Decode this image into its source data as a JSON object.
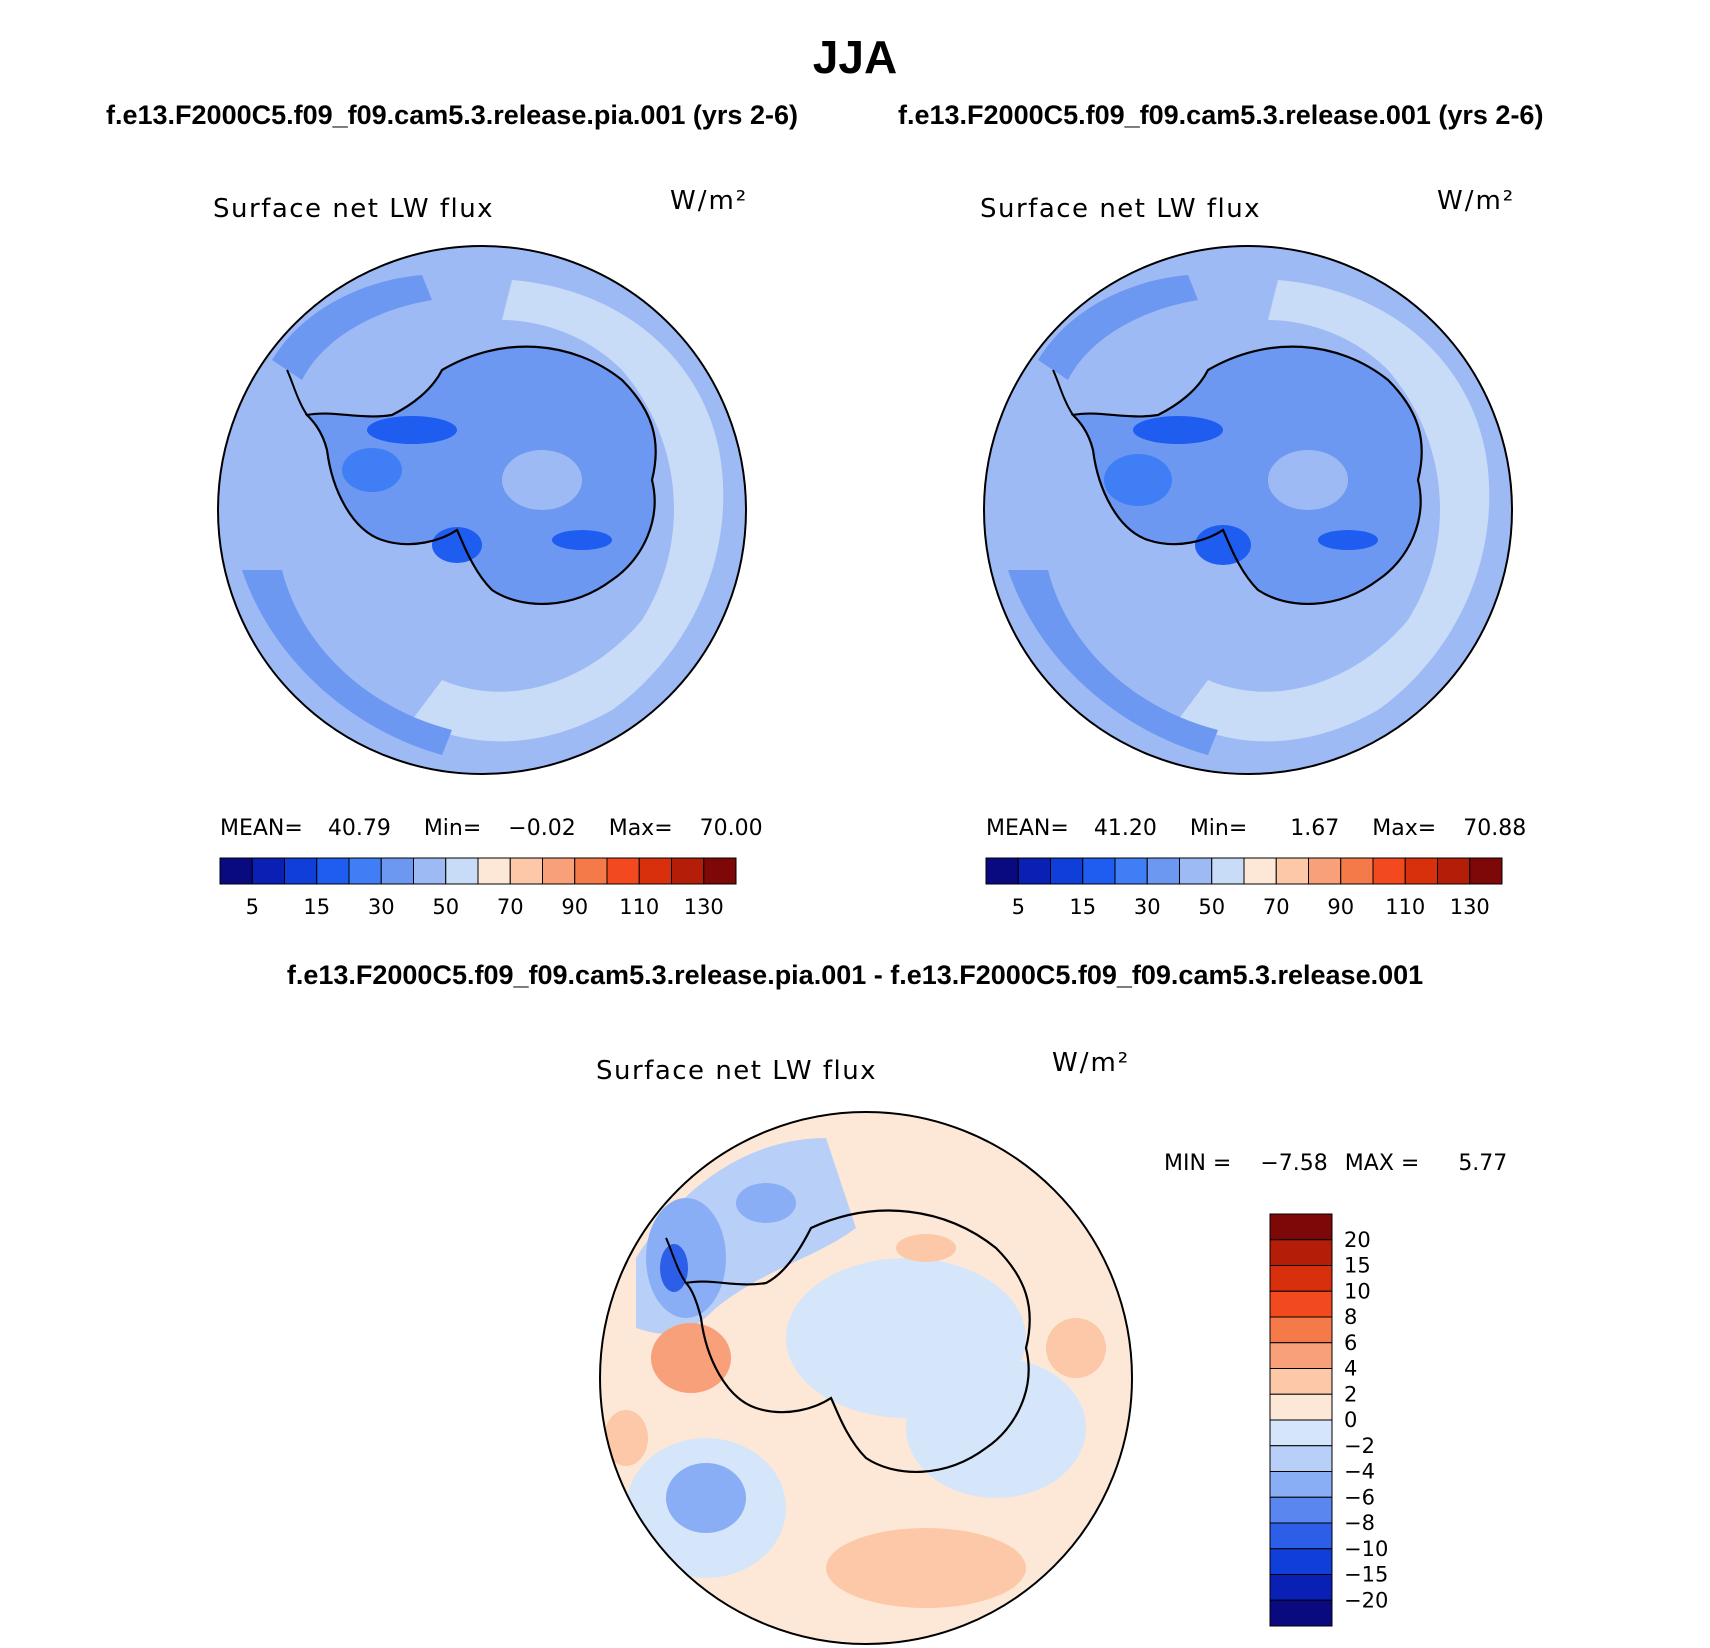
{
  "title": "JJA",
  "panels": {
    "left": {
      "case": "f.e13.F2000C5.f09_f09.cam5.3.release.pia.001 (yrs 2-6)",
      "variable": "Surface net LW flux",
      "units": "W/m²",
      "mean_label": "MEAN=",
      "mean": "40.79",
      "min_label": "Min=",
      "min": "−0.02",
      "max_label": "Max=",
      "max": "70.00"
    },
    "right": {
      "case": "f.e13.F2000C5.f09_f09.cam5.3.release.001 (yrs 2-6)",
      "variable": "Surface net LW flux",
      "units": "W/m²",
      "mean_label": "MEAN=",
      "mean": "41.20",
      "min_label": "Min=",
      "min": "1.67",
      "max_label": "Max=",
      "max": "70.88"
    },
    "diff": {
      "case": "f.e13.F2000C5.f09_f09.cam5.3.release.pia.001 - f.e13.F2000C5.f09_f09.cam5.3.release.001",
      "variable": "Surface net LW flux",
      "units": "W/m²",
      "min_label": "MIN =",
      "min": "−7.58",
      "max_label": "MAX =",
      "max": "5.77"
    }
  },
  "chart_data": [
    {
      "type": "heatmap",
      "projection": "south polar stereographic",
      "title": "Surface net LW flux",
      "units": "W/m²",
      "stats": {
        "mean": 40.79,
        "min": -0.02,
        "max": 70.0
      },
      "colorbar": {
        "orientation": "horizontal",
        "tick_labels": [
          "5",
          "15",
          "30",
          "50",
          "70",
          "90",
          "110",
          "130"
        ],
        "colors": [
          "#0a0a80",
          "#0a1fb4",
          "#0f3fd8",
          "#1f5cf0",
          "#3f7ef5",
          "#6c98f2",
          "#9dbaf5",
          "#c8dcf8",
          "#fde8d8",
          "#fcc8a8",
          "#f8a07a",
          "#f57a4a",
          "#f24a1e",
          "#d8300c",
          "#b41e08",
          "#7e0808"
        ]
      }
    },
    {
      "type": "heatmap",
      "projection": "south polar stereographic",
      "title": "Surface net LW flux",
      "units": "W/m²",
      "stats": {
        "mean": 41.2,
        "min": 1.67,
        "max": 70.88
      },
      "colorbar": {
        "orientation": "horizontal",
        "tick_labels": [
          "5",
          "15",
          "30",
          "50",
          "70",
          "90",
          "110",
          "130"
        ],
        "colors": [
          "#0a0a80",
          "#0a1fb4",
          "#0f3fd8",
          "#1f5cf0",
          "#3f7ef5",
          "#6c98f2",
          "#9dbaf5",
          "#c8dcf8",
          "#fde8d8",
          "#fcc8a8",
          "#f8a07a",
          "#f57a4a",
          "#f24a1e",
          "#d8300c",
          "#b41e08",
          "#7e0808"
        ]
      }
    },
    {
      "type": "heatmap",
      "projection": "south polar stereographic",
      "title": "Surface net LW flux",
      "units": "W/m²",
      "stats": {
        "min": -7.58,
        "max": 5.77
      },
      "colorbar": {
        "orientation": "vertical",
        "tick_labels": [
          "20",
          "15",
          "10",
          "8",
          "6",
          "4",
          "2",
          "0",
          "−2",
          "−4",
          "−6",
          "−8",
          "−10",
          "−15",
          "−20"
        ],
        "colors": [
          "#7e0808",
          "#b41e08",
          "#d8300c",
          "#f24a1e",
          "#f57a4a",
          "#f8a07a",
          "#fcc8a8",
          "#fde8d8",
          "#d6e6fa",
          "#b8d0f8",
          "#8aaef5",
          "#5a86f0",
          "#2c5ee8",
          "#0f3fd8",
          "#0a1fb4",
          "#0a0a80"
        ]
      }
    }
  ]
}
